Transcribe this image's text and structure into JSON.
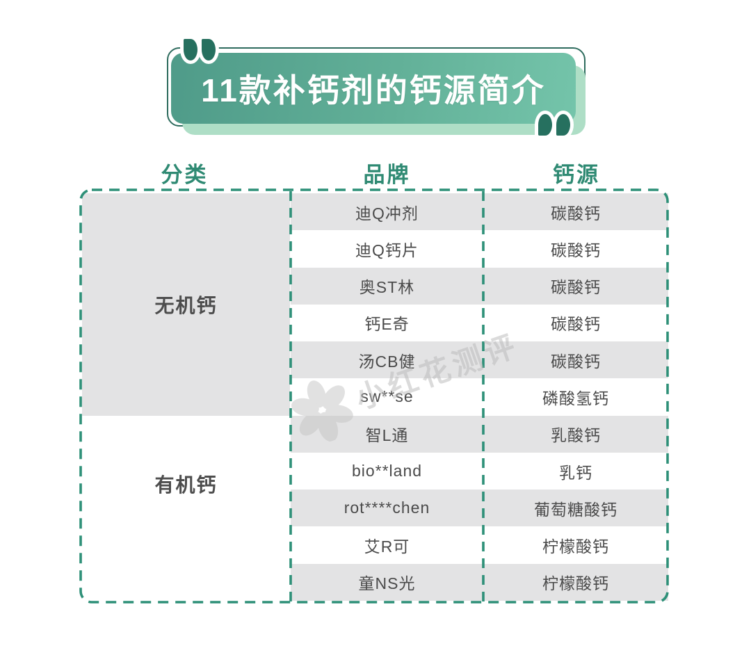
{
  "title": "11款补钙剂的钙源简介",
  "table": {
    "headers": [
      "分类",
      "品牌",
      "钙源"
    ],
    "categories": [
      {
        "label": "无机钙",
        "row_span": 6
      },
      {
        "label": "有机钙",
        "row_span": 5
      }
    ],
    "rows": [
      {
        "brand": "迪Q冲剂",
        "source": "碳酸钙"
      },
      {
        "brand": "迪Q钙片",
        "source": "碳酸钙"
      },
      {
        "brand": "奥ST林",
        "source": "碳酸钙"
      },
      {
        "brand": "钙E奇",
        "source": "碳酸钙"
      },
      {
        "brand": "汤CB健",
        "source": "碳酸钙"
      },
      {
        "brand": "sw**se",
        "source": "磷酸氢钙"
      },
      {
        "brand": "智L通",
        "source": "乳酸钙"
      },
      {
        "brand": "bio**land",
        "source": "乳钙"
      },
      {
        "brand": "rot****chen",
        "source": "葡萄糖酸钙"
      },
      {
        "brand": "艾R可",
        "source": "柠檬酸钙"
      },
      {
        "brand": "童NS光",
        "source": "柠檬酸钙"
      }
    ]
  },
  "watermark": {
    "text": "小红花测评"
  },
  "colors": {
    "accent_teal": "#2F8A73",
    "dashed_border": "#2E9078",
    "title_gradient_start": "#4F9B89",
    "title_gradient_end": "#74C4AA",
    "title_shadow_green": "#AEDEC6",
    "outline_border": "#2D6B5D",
    "quote_mark": "#26705F",
    "row_gray": "#E3E3E4",
    "cell_text": "#4A4A4A",
    "watermark_gray": "#B9B9B9"
  },
  "chart_data": {
    "type": "table",
    "title": "11款补钙剂的钙源简介",
    "columns": [
      "分类",
      "品牌",
      "钙源"
    ],
    "rows": [
      [
        "无机钙",
        "迪Q冲剂",
        "碳酸钙"
      ],
      [
        "无机钙",
        "迪Q钙片",
        "碳酸钙"
      ],
      [
        "无机钙",
        "奥ST林",
        "碳酸钙"
      ],
      [
        "无机钙",
        "钙E奇",
        "碳酸钙"
      ],
      [
        "无机钙",
        "汤CB健",
        "碳酸钙"
      ],
      [
        "无机钙",
        "sw**se",
        "磷酸氢钙"
      ],
      [
        "有机钙",
        "智L通",
        "乳酸钙"
      ],
      [
        "有机钙",
        "bio**land",
        "乳钙"
      ],
      [
        "有机钙",
        "rot****chen",
        "葡萄糖酸钙"
      ],
      [
        "有机钙",
        "艾R可",
        "柠檬酸钙"
      ],
      [
        "有机钙",
        "童NS光",
        "柠檬酸钙"
      ]
    ]
  }
}
